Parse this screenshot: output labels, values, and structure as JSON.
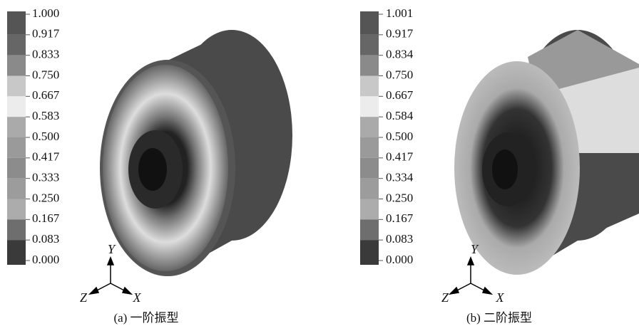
{
  "panels": [
    {
      "legend": [
        "1.000",
        "0.917",
        "0.833",
        "0.750",
        "0.667",
        "0.583",
        "0.500",
        "0.417",
        "0.333",
        "0.250",
        "0.167",
        "0.083",
        "0.000"
      ],
      "axes": {
        "y": "Y",
        "z": "Z",
        "x": "X"
      },
      "caption": "(a) 一阶振型"
    },
    {
      "legend": [
        "1.001",
        "0.917",
        "0.834",
        "0.750",
        "0.667",
        "0.584",
        "0.500",
        "0.417",
        "0.334",
        "0.250",
        "0.167",
        "0.083",
        "0.000"
      ],
      "axes": {
        "y": "Y",
        "z": "Z",
        "x": "X"
      },
      "caption": "(b) 二阶振型"
    }
  ]
}
